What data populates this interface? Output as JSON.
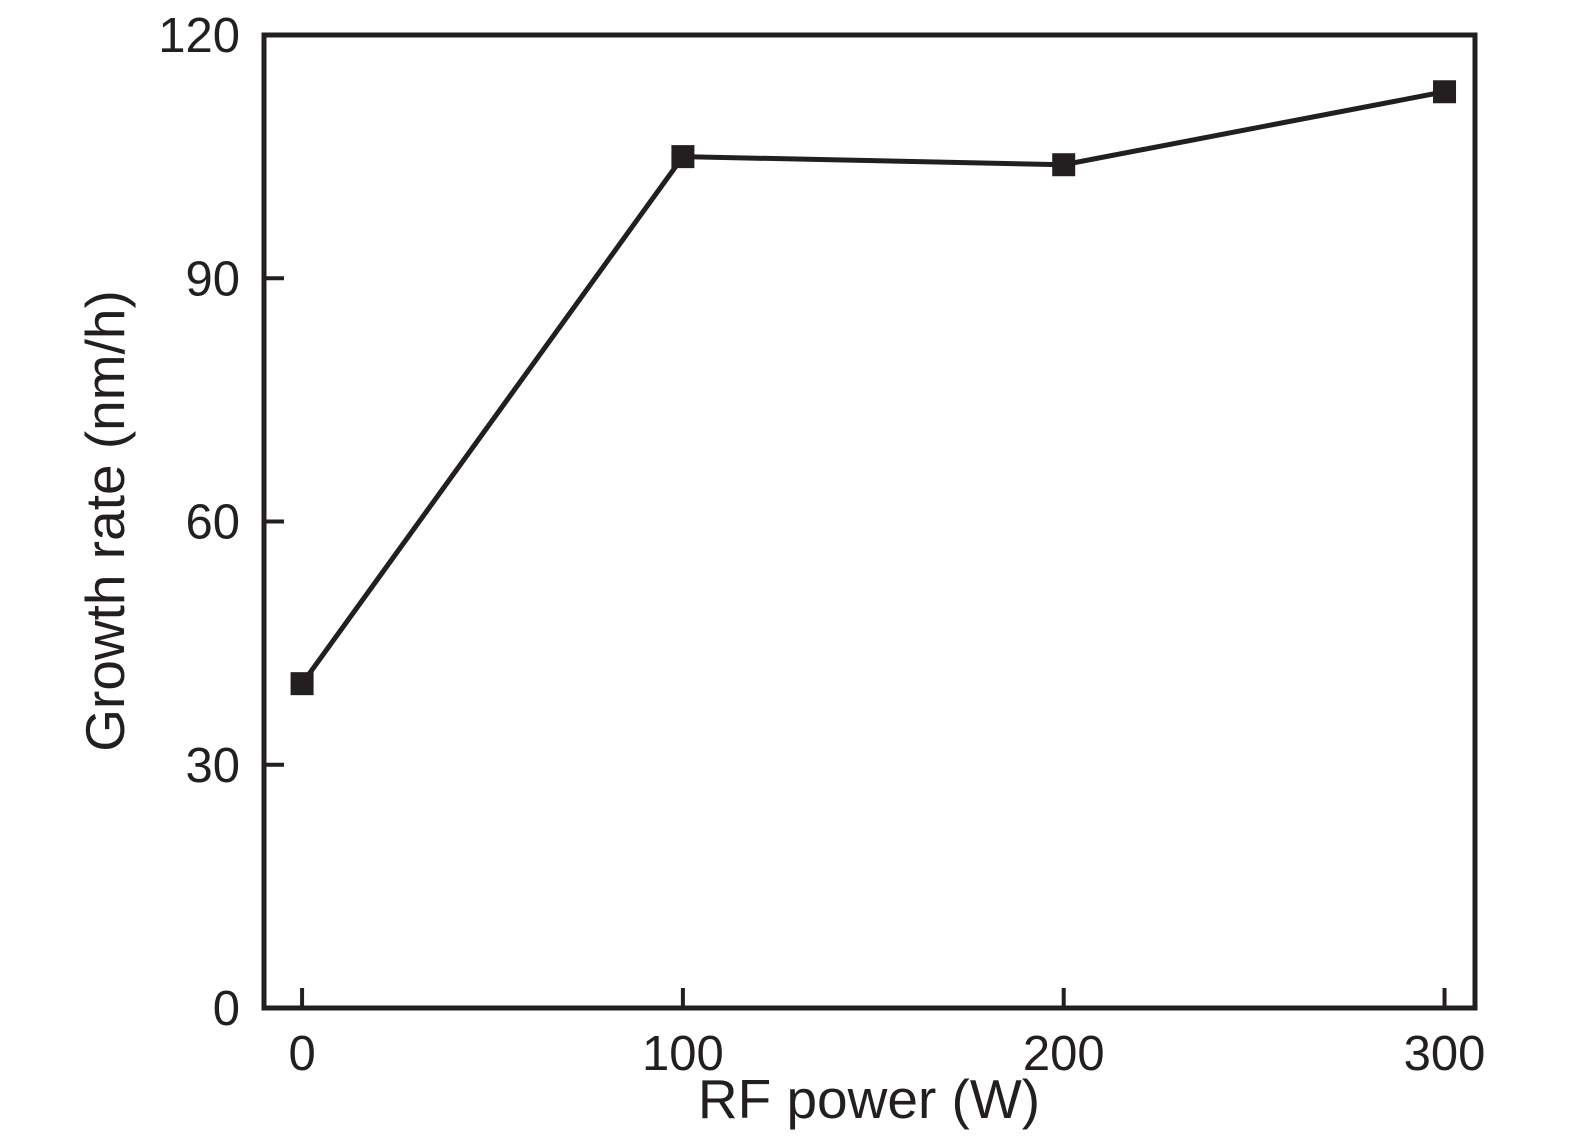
{
  "chart_data": {
    "type": "line",
    "xlabel": "RF power (W)",
    "ylabel": "Growth rate (nm/h)",
    "x": [
      0,
      100,
      200,
      300
    ],
    "series": [
      {
        "name": "Growth rate",
        "values": [
          40,
          105,
          104,
          113
        ]
      }
    ],
    "xlim": [
      -10,
      308
    ],
    "ylim": [
      0,
      120
    ],
    "xticks": [
      0,
      100,
      200,
      300
    ],
    "yticks": [
      0,
      30,
      60,
      90,
      120
    ],
    "grid": false,
    "legend_position": "none",
    "marker": "square",
    "line_color": "#231f20",
    "marker_color": "#231f20",
    "axis_color": "#231f20",
    "background_color": "#ffffff"
  }
}
